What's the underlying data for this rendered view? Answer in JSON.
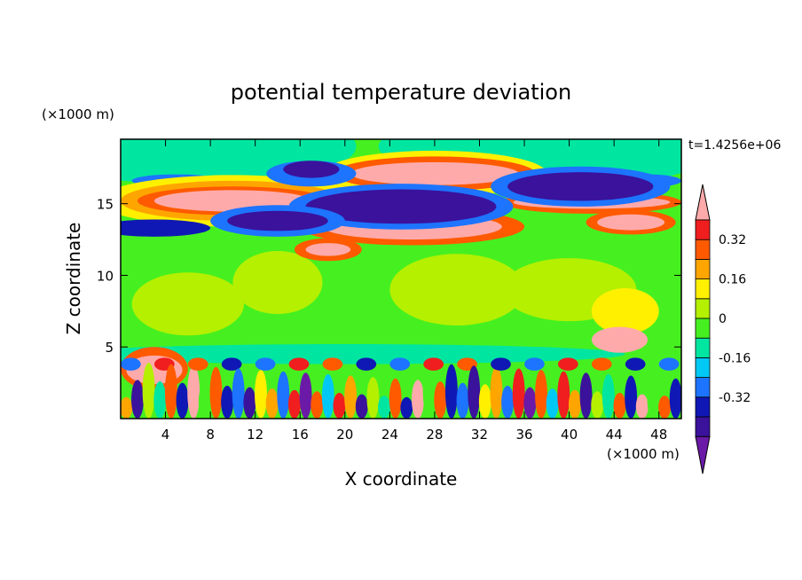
{
  "chart_data": {
    "type": "heatmap",
    "title": "potential temperature deviation",
    "xlabel": "X coordinate",
    "ylabel": "Z coordinate",
    "x_unit": "(×1000 m)",
    "y_unit": "(×1000 m)",
    "time_label": "t=1.4256e+06",
    "xlim": [
      0,
      50
    ],
    "ylim": [
      0,
      19.5
    ],
    "x_ticks": [
      4,
      8,
      12,
      16,
      20,
      24,
      28,
      32,
      36,
      40,
      44,
      48
    ],
    "y_ticks": [
      5,
      10,
      15
    ],
    "colorbar": {
      "levels": [
        -0.48,
        -0.4,
        -0.32,
        -0.24,
        -0.16,
        -0.08,
        0,
        0.08,
        0.16,
        0.24,
        0.32,
        0.4
      ],
      "tick_labels": [
        "0.32",
        "0.16",
        "0",
        "-0.16",
        "-0.32"
      ],
      "tick_values": [
        0.32,
        0.16,
        0,
        -0.16,
        -0.32
      ],
      "colors": [
        "#6b1aa8",
        "#3a129b",
        "#0f18b4",
        "#1d74ff",
        "#00c8f5",
        "#00e6a0",
        "#46f020",
        "#b4f000",
        "#fff000",
        "#ffa500",
        "#ff5a00",
        "#f01e1e",
        "#ffaaaa"
      ]
    },
    "background_color": "#46f020"
  }
}
